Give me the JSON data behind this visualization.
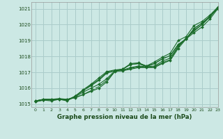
{
  "title": "Graphe pression niveau de la mer (hPa)",
  "bg_color": "#cce8e4",
  "grid_color": "#aaccca",
  "line_color": "#1a6b2a",
  "xlim": [
    -0.5,
    23
  ],
  "ylim": [
    1014.8,
    1021.4
  ],
  "yticks": [
    1015,
    1016,
    1017,
    1018,
    1019,
    1020,
    1021
  ],
  "xticks": [
    0,
    1,
    2,
    3,
    4,
    5,
    6,
    7,
    8,
    9,
    10,
    11,
    12,
    13,
    14,
    15,
    16,
    17,
    18,
    19,
    20,
    21,
    22,
    23
  ],
  "series": [
    [
      1015.2,
      1015.3,
      1015.3,
      1015.3,
      1015.3,
      1015.4,
      1015.6,
      1015.8,
      1016.0,
      1016.4,
      1017.05,
      1017.1,
      1017.2,
      1017.3,
      1017.3,
      1017.3,
      1017.55,
      1017.75,
      1018.5,
      1019.1,
      1019.5,
      1019.85,
      1020.35,
      1021.0
    ],
    [
      1015.2,
      1015.3,
      1015.3,
      1015.35,
      1015.3,
      1015.45,
      1015.75,
      1016.0,
      1016.25,
      1016.6,
      1017.1,
      1017.15,
      1017.3,
      1017.4,
      1017.35,
      1017.4,
      1017.7,
      1017.9,
      1018.65,
      1019.15,
      1019.65,
      1020.0,
      1020.5,
      1021.05
    ],
    [
      1015.15,
      1015.25,
      1015.25,
      1015.3,
      1015.25,
      1015.5,
      1015.85,
      1016.15,
      1016.5,
      1016.95,
      1017.1,
      1017.2,
      1017.5,
      1017.55,
      1017.4,
      1017.55,
      1017.85,
      1018.05,
      1018.75,
      1019.1,
      1019.75,
      1020.1,
      1020.5,
      1021.05
    ],
    [
      1015.15,
      1015.25,
      1015.2,
      1015.3,
      1015.2,
      1015.5,
      1015.9,
      1016.25,
      1016.65,
      1017.05,
      1017.15,
      1017.2,
      1017.55,
      1017.6,
      1017.4,
      1017.65,
      1017.95,
      1018.2,
      1019.0,
      1019.25,
      1019.95,
      1020.2,
      1020.6,
      1021.1
    ]
  ],
  "series_smooth": [
    [
      1015.2,
      1015.3,
      1015.3,
      1015.3,
      1015.3,
      1015.4,
      1015.6,
      1015.85,
      1016.1,
      1016.5,
      1017.05,
      1017.1,
      1017.25,
      1017.35,
      1017.3,
      1017.35,
      1017.6,
      1017.8,
      1018.6,
      1019.15,
      1019.6,
      1020.0,
      1020.5,
      1021.1
    ],
    [
      1015.15,
      1015.3,
      1015.3,
      1015.3,
      1015.25,
      1015.5,
      1015.85,
      1016.2,
      1016.55,
      1017.0,
      1017.1,
      1017.2,
      1017.5,
      1017.55,
      1017.35,
      1017.55,
      1017.85,
      1018.05,
      1018.75,
      1019.1,
      1019.75,
      1020.1,
      1020.5,
      1021.05
    ]
  ]
}
